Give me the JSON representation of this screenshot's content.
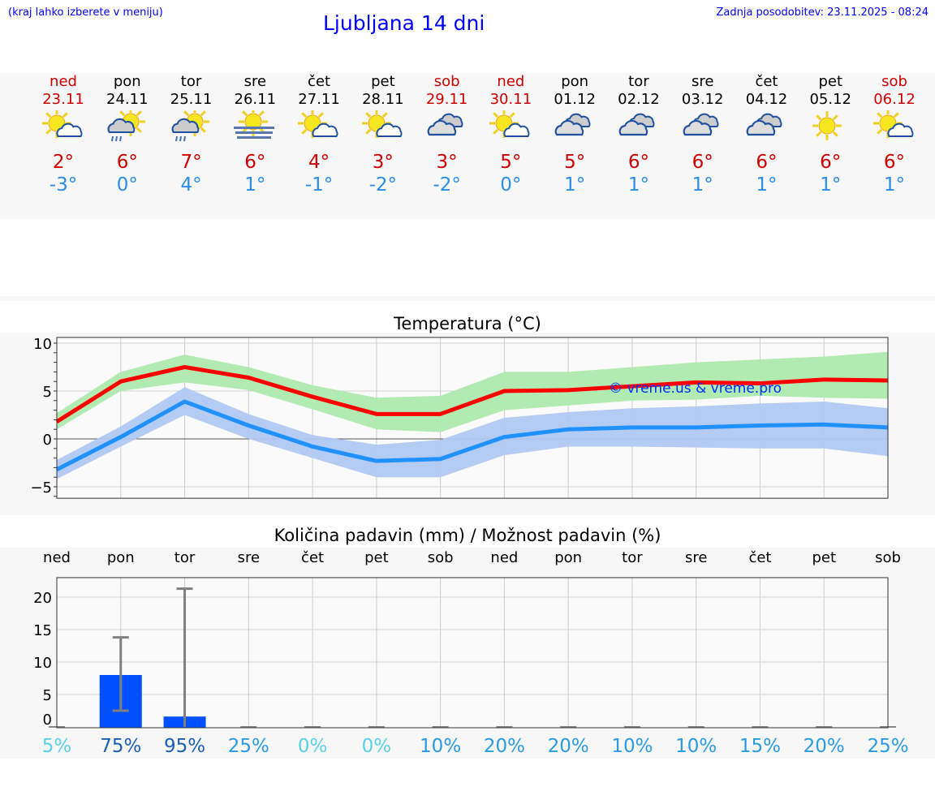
{
  "header": {
    "hint": "(kraj lahko izberete v meniju)",
    "title": "Ljubljana 14 dni",
    "updated": "Zadnja posodobitev: 23.11.2025 - 08:24"
  },
  "colors": {
    "max": "#ff0000",
    "min": "#1e90ff",
    "max_band": "#aeeaae",
    "min_band": "#b0c8f2",
    "bar": "#0050ff",
    "weekend": "#cc0000"
  },
  "days": [
    {
      "name": "ned",
      "date": "23.11",
      "icon": "sun-cloud",
      "max": "2°",
      "min": "-3°",
      "weekend": true
    },
    {
      "name": "pon",
      "date": "24.11",
      "icon": "sun-cloud-rain",
      "max": "6°",
      "min": "0°"
    },
    {
      "name": "tor",
      "date": "25.11",
      "icon": "sun-cloud-rain",
      "max": "7°",
      "min": "4°"
    },
    {
      "name": "sre",
      "date": "26.11",
      "icon": "sun-fog",
      "max": "6°",
      "min": "1°"
    },
    {
      "name": "čet",
      "date": "27.11",
      "icon": "sun-cloud",
      "max": "4°",
      "min": "-1°"
    },
    {
      "name": "pet",
      "date": "28.11",
      "icon": "sun-cloud",
      "max": "3°",
      "min": "-2°"
    },
    {
      "name": "sob",
      "date": "29.11",
      "icon": "cloudy",
      "max": "3°",
      "min": "-2°",
      "weekend": true
    },
    {
      "name": "ned",
      "date": "30.11",
      "icon": "sun-cloud",
      "max": "5°",
      "min": "0°",
      "weekend": true
    },
    {
      "name": "pon",
      "date": "01.12",
      "icon": "cloudy",
      "max": "5°",
      "min": "1°"
    },
    {
      "name": "tor",
      "date": "02.12",
      "icon": "cloudy",
      "max": "6°",
      "min": "1°"
    },
    {
      "name": "sre",
      "date": "03.12",
      "icon": "cloudy",
      "max": "6°",
      "min": "1°"
    },
    {
      "name": "čet",
      "date": "04.12",
      "icon": "cloudy",
      "max": "6°",
      "min": "1°"
    },
    {
      "name": "pet",
      "date": "05.12",
      "icon": "sun",
      "max": "6°",
      "min": "1°"
    },
    {
      "name": "sob",
      "date": "06.12",
      "icon": "sun-cloud",
      "max": "6°",
      "min": "1°",
      "weekend": true
    }
  ],
  "chart_data": [
    {
      "type": "line",
      "title": "Temperatura (°C)",
      "watermark": "© vreme.us & vreme.pro",
      "ylim": [
        -6.2,
        10.6
      ],
      "yticks": [
        "10",
        "5",
        "0",
        "−5"
      ],
      "grid": true,
      "series": [
        {
          "values": [
            1.8,
            6.0,
            7.5,
            6.4,
            4.4,
            2.6,
            2.6,
            5.0,
            5.1,
            5.5,
            5.9,
            5.8,
            6.2,
            6.1
          ],
          "band_low": [
            1.0,
            5.0,
            5.9,
            5.1,
            3.1,
            1.0,
            0.7,
            3.0,
            3.5,
            4.0,
            4.1,
            4.5,
            4.3,
            4.2
          ],
          "band_high": [
            2.7,
            7.0,
            8.8,
            7.5,
            5.6,
            4.3,
            4.5,
            7.0,
            7.0,
            7.5,
            8.0,
            8.3,
            8.6,
            9.1
          ]
        },
        {
          "values": [
            -3.2,
            0.2,
            3.9,
            1.4,
            -0.8,
            -2.3,
            -2.1,
            0.2,
            1.0,
            1.2,
            1.2,
            1.4,
            1.5,
            1.2
          ],
          "band_low": [
            -4.2,
            -0.8,
            2.5,
            0.0,
            -2.0,
            -4.0,
            -4.0,
            -1.7,
            -0.8,
            -0.8,
            -0.9,
            -1.0,
            -1.0,
            -1.8
          ],
          "band_high": [
            -2.2,
            1.3,
            5.4,
            2.6,
            0.4,
            -0.6,
            -0.1,
            2.2,
            2.8,
            3.2,
            3.4,
            3.7,
            3.9,
            3.2
          ]
        }
      ]
    },
    {
      "type": "bar",
      "title": "Količina padavin (mm) / Možnost padavin (%)",
      "categories": [
        "ned",
        "pon",
        "tor",
        "sre",
        "čet",
        "pet",
        "sob",
        "ned",
        "pon",
        "tor",
        "sre",
        "čet",
        "pet",
        "sob"
      ],
      "ylim": [
        0,
        23
      ],
      "yticks": [
        "20",
        "15",
        "10",
        "5",
        "0"
      ],
      "values": [
        0,
        8.0,
        1.6,
        0,
        0,
        0,
        0,
        0,
        0,
        0,
        0,
        0,
        0,
        0
      ],
      "err_low": [
        0,
        2.5,
        0,
        0,
        0,
        0,
        0,
        0,
        0,
        0,
        0,
        0,
        0,
        0
      ],
      "err_high": [
        0,
        13.8,
        21.3,
        0,
        0,
        0,
        0,
        0,
        0,
        0,
        0,
        0,
        0,
        0
      ],
      "probability": [
        "5%",
        "75%",
        "95%",
        "25%",
        "0%",
        "0%",
        "10%",
        "20%",
        "20%",
        "10%",
        "10%",
        "15%",
        "20%",
        "25%"
      ]
    }
  ]
}
